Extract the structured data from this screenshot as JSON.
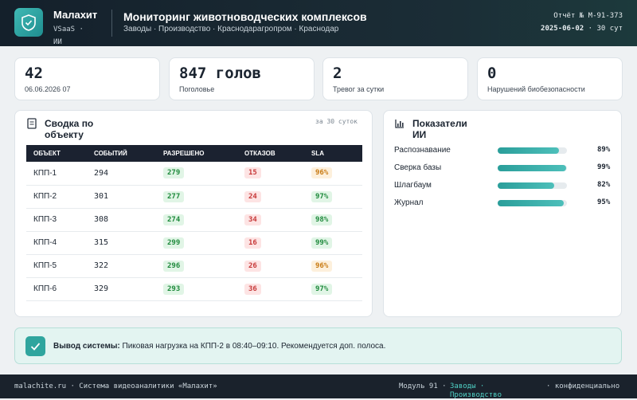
{
  "header": {
    "brand": "Малахит",
    "brand_sub": "VSaaS ·",
    "brand_sub2": "ИИ",
    "title": "Мониторинг животноводческих комплексов",
    "breadcrumbs": "Заводы · Производство · Краснодарагропром · Краснодар",
    "report": "Отчёт № М-91-373",
    "date": "2025-06-02",
    "period": "· 30 сут"
  },
  "kpis": [
    {
      "value": "42",
      "label": "06.06.2026 07"
    },
    {
      "value": "847 голов",
      "label": "Поголовье"
    },
    {
      "value": "2",
      "label": "Тревог за сутки"
    },
    {
      "value": "0",
      "label": "Нарушений биобезопасности"
    }
  ],
  "summary": {
    "title": "Сводка по объекту",
    "period": "за 30 суток",
    "columns": [
      "ОБЪЕКТ",
      "СОБЫТИЙ",
      "РАЗРЕШЕНО",
      "ОТКАЗОВ",
      "SLA"
    ],
    "rows": [
      [
        "КПП-1",
        "294",
        "279",
        "15",
        "96%"
      ],
      [
        "КПП-2",
        "301",
        "277",
        "24",
        "97%"
      ],
      [
        "КПП-3",
        "308",
        "274",
        "34",
        "98%"
      ],
      [
        "КПП-4",
        "315",
        "299",
        "16",
        "99%"
      ],
      [
        "КПП-5",
        "322",
        "296",
        "26",
        "96%"
      ],
      [
        "КПП-6",
        "329",
        "293",
        "36",
        "97%"
      ]
    ]
  },
  "ai": {
    "title": "Показатели ИИ",
    "metrics": [
      {
        "name": "Распознавание",
        "value": 89,
        "label": "89%"
      },
      {
        "name": "Сверка базы",
        "value": 99,
        "label": "99%"
      },
      {
        "name": "Шлагбаум",
        "value": 82,
        "label": "82%"
      },
      {
        "name": "Журнал",
        "value": 95,
        "label": "95%"
      }
    ]
  },
  "output": {
    "label": "Вывод системы:",
    "text": "Пиковая нагрузка на КПП-2 в 08:40–09:10. Рекомендуется доп. полоса."
  },
  "footer": {
    "left": "malachite.ru · Система видеоаналитики «Малахит»",
    "module": "Модуль 91 ·",
    "links": "Заводы · Производство",
    "right": "· конфиденциально"
  }
}
